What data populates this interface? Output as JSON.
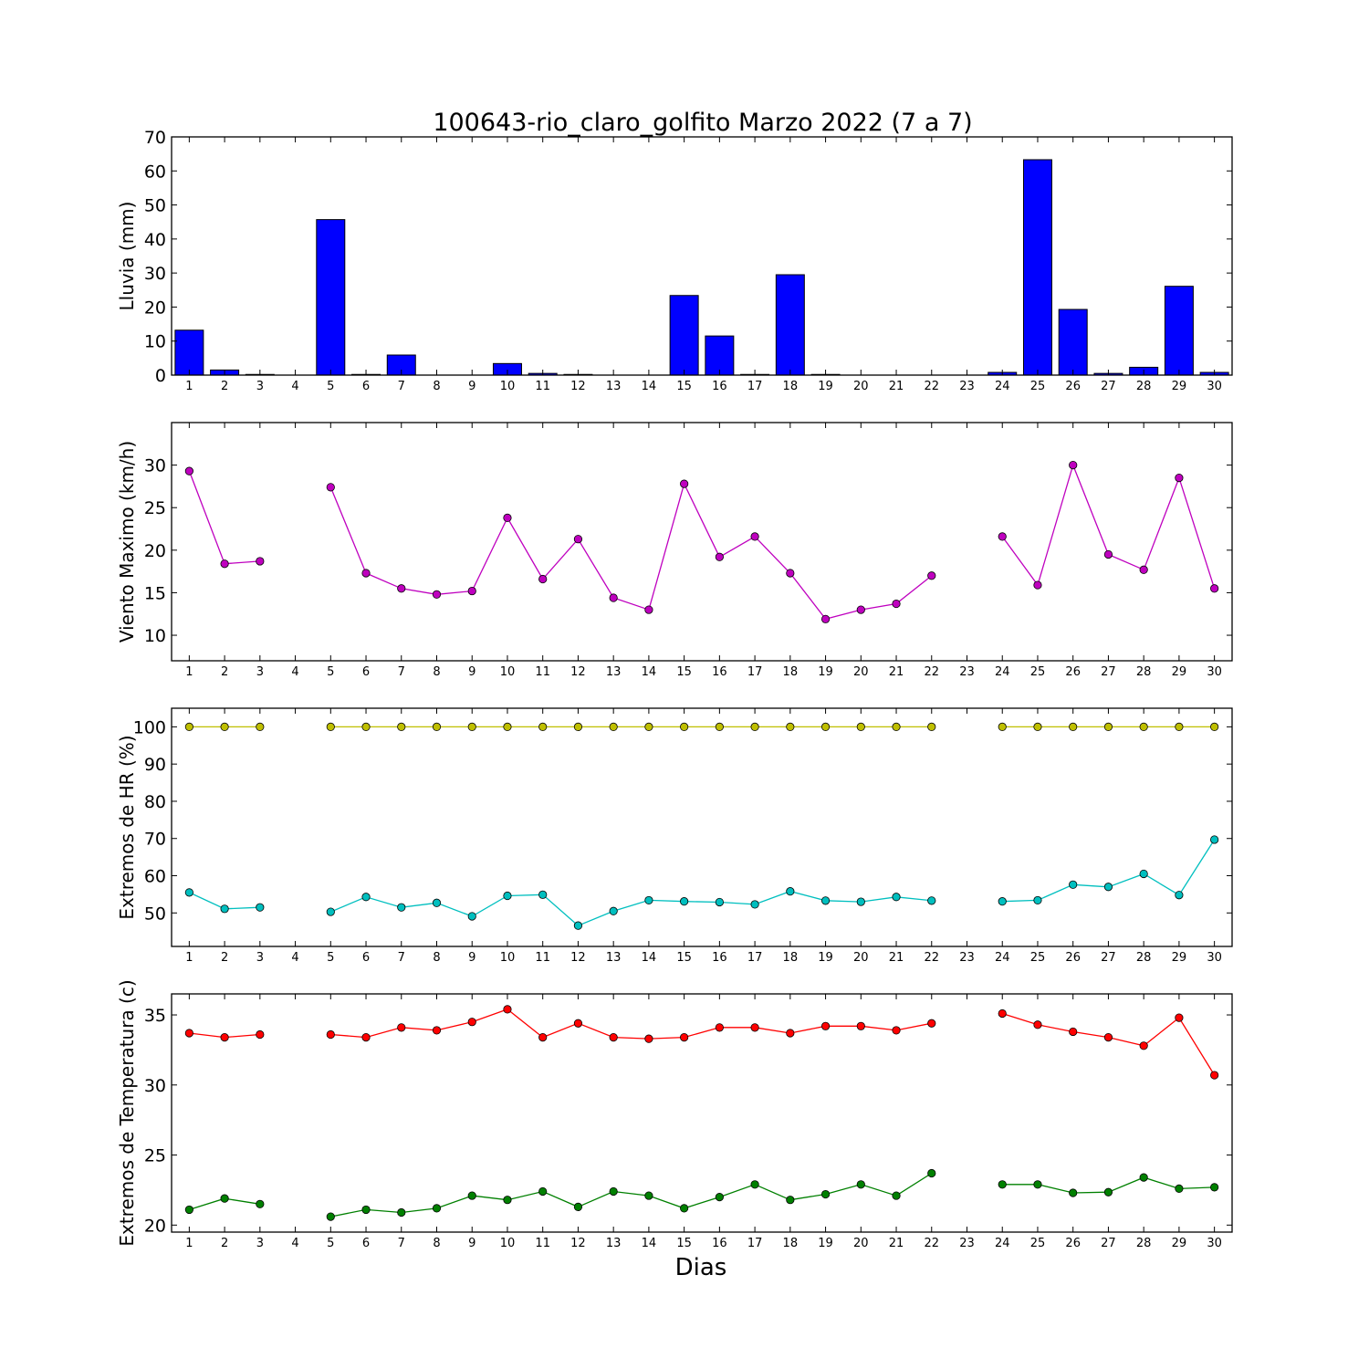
{
  "chart_data": [
    {
      "type": "bar",
      "title": "100643-rio_claro_golfito Marzo 2022  (7 a 7)",
      "ylabel": "Lluvia (mm)",
      "xlabel": "",
      "ylim": [
        0,
        70
      ],
      "yticks": [
        0,
        10,
        20,
        30,
        40,
        50,
        60,
        70
      ],
      "categories": [
        "1",
        "2",
        "3",
        "4",
        "5",
        "6",
        "7",
        "8",
        "9",
        "10",
        "11",
        "12",
        "13",
        "14",
        "15",
        "16",
        "17",
        "18",
        "19",
        "20",
        "21",
        "22",
        "23",
        "24",
        "25",
        "26",
        "27",
        "28",
        "29",
        "30"
      ],
      "series": [
        {
          "color": "#0000ff",
          "values": [
            13.2,
            1.5,
            0.2,
            null,
            45.7,
            0.2,
            5.9,
            0,
            0,
            3.4,
            0.5,
            0.2,
            0,
            0,
            23.4,
            11.5,
            0.2,
            29.5,
            0.2,
            0,
            0,
            0,
            null,
            0.8,
            63.3,
            19.3,
            0.5,
            2.3,
            26.1,
            0.8
          ]
        }
      ]
    },
    {
      "type": "line",
      "ylabel": "Viento Maximo (km/h)",
      "ylim": [
        7,
        35
      ],
      "yticks": [
        10,
        15,
        20,
        25,
        30
      ],
      "categories": [
        "1",
        "2",
        "3",
        "4",
        "5",
        "6",
        "7",
        "8",
        "9",
        "10",
        "11",
        "12",
        "13",
        "14",
        "15",
        "16",
        "17",
        "18",
        "19",
        "20",
        "21",
        "22",
        "23",
        "24",
        "25",
        "26",
        "27",
        "28",
        "29",
        "30"
      ],
      "series": [
        {
          "color": "#bf00bf",
          "values": [
            29.3,
            18.4,
            18.7,
            null,
            27.4,
            17.3,
            15.5,
            14.8,
            15.2,
            23.8,
            16.6,
            21.3,
            14.4,
            13.0,
            27.8,
            19.2,
            21.6,
            17.3,
            11.9,
            13.0,
            13.7,
            17.0,
            null,
            21.6,
            15.9,
            30.0,
            19.5,
            17.7,
            28.5,
            15.5
          ]
        }
      ]
    },
    {
      "type": "line",
      "ylabel": "Extremos de HR (%)",
      "ylim": [
        41,
        105
      ],
      "yticks": [
        50,
        60,
        70,
        80,
        90,
        100
      ],
      "categories": [
        "1",
        "2",
        "3",
        "4",
        "5",
        "6",
        "7",
        "8",
        "9",
        "10",
        "11",
        "12",
        "13",
        "14",
        "15",
        "16",
        "17",
        "18",
        "19",
        "20",
        "21",
        "22",
        "23",
        "24",
        "25",
        "26",
        "27",
        "28",
        "29",
        "30"
      ],
      "series": [
        {
          "color": "#bfbf00",
          "values": [
            100,
            100,
            100,
            null,
            100,
            100,
            100,
            100,
            100,
            100,
            100,
            100,
            100,
            100,
            100,
            100,
            100,
            100,
            100,
            100,
            100,
            100,
            null,
            100,
            100,
            100,
            100,
            100,
            100,
            100
          ]
        },
        {
          "color": "#00bfbf",
          "values": [
            55.5,
            51.1,
            51.5,
            null,
            50.3,
            54.3,
            51.5,
            52.7,
            49.1,
            54.6,
            54.9,
            46.6,
            50.5,
            53.4,
            53.1,
            52.9,
            52.3,
            55.8,
            53.3,
            53.0,
            54.3,
            53.3,
            null,
            53.1,
            53.4,
            57.6,
            57.0,
            60.5,
            54.8,
            69.7
          ]
        }
      ]
    },
    {
      "type": "line",
      "ylabel": "Extremos de Temperatura (c)",
      "xlabel": "Dias",
      "ylim": [
        19.5,
        36.5
      ],
      "yticks": [
        20,
        25,
        30,
        35
      ],
      "categories": [
        "1",
        "2",
        "3",
        "4",
        "5",
        "6",
        "7",
        "8",
        "9",
        "10",
        "11",
        "12",
        "13",
        "14",
        "15",
        "16",
        "17",
        "18",
        "19",
        "20",
        "21",
        "22",
        "23",
        "24",
        "25",
        "26",
        "27",
        "28",
        "29",
        "30"
      ],
      "series": [
        {
          "color": "#ff0000",
          "values": [
            33.7,
            33.4,
            33.6,
            null,
            33.6,
            33.4,
            34.1,
            33.9,
            34.5,
            35.4,
            33.4,
            34.4,
            33.4,
            33.3,
            33.4,
            34.1,
            34.1,
            33.7,
            34.2,
            34.2,
            33.9,
            34.4,
            null,
            35.1,
            34.3,
            33.8,
            33.4,
            32.8,
            34.8,
            30.7
          ]
        },
        {
          "color": "#008000",
          "values": [
            21.1,
            21.9,
            21.5,
            null,
            20.6,
            21.1,
            20.9,
            21.2,
            22.1,
            21.8,
            22.4,
            21.3,
            22.4,
            22.1,
            21.2,
            22.0,
            22.9,
            21.8,
            22.2,
            22.9,
            22.1,
            23.7,
            null,
            22.9,
            22.9,
            22.3,
            22.35,
            23.4,
            22.6,
            22.7
          ]
        }
      ]
    }
  ]
}
